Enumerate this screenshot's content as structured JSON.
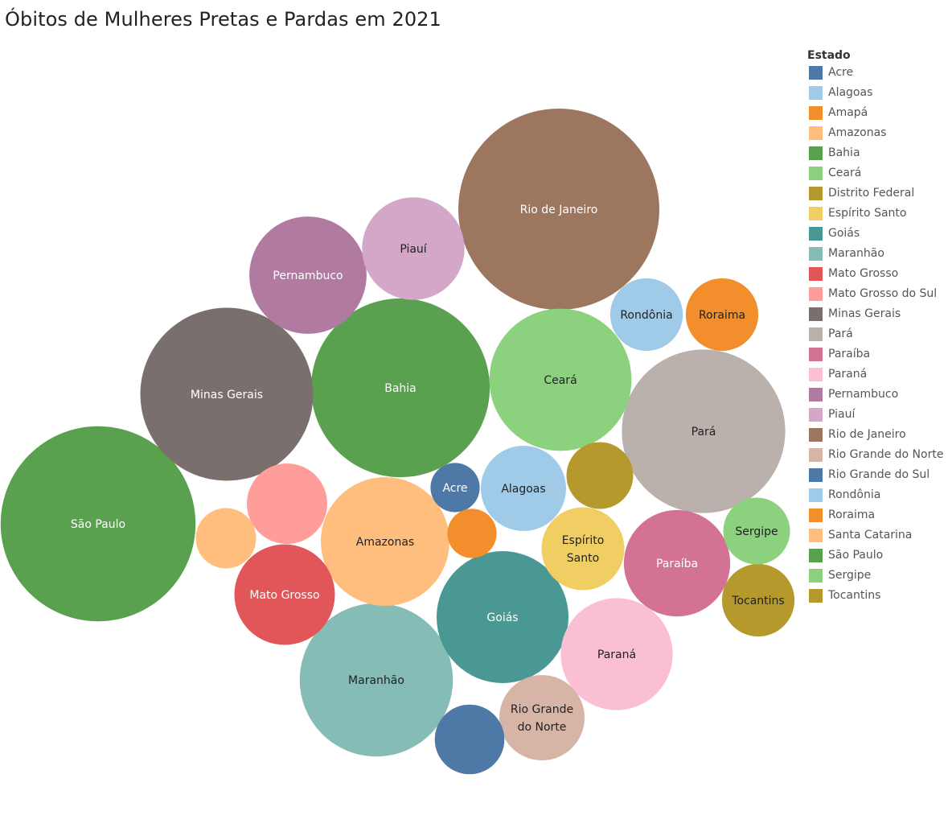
{
  "chart_data": {
    "type": "packed-bubble",
    "title": "Óbitos de Mulheres Pretas e Pardas em 2021",
    "legend": {
      "title": "Estado",
      "placement": "right",
      "items": [
        {
          "label": "Acre",
          "color": "#4e79a7"
        },
        {
          "label": "Alagoas",
          "color": "#a0cbe8"
        },
        {
          "label": "Amapá",
          "color": "#f28e2b"
        },
        {
          "label": "Amazonas",
          "color": "#ffbe7d"
        },
        {
          "label": "Bahia",
          "color": "#59a14f"
        },
        {
          "label": "Ceará",
          "color": "#8cd17d"
        },
        {
          "label": "Distrito Federal",
          "color": "#b6992d"
        },
        {
          "label": "Espírito Santo",
          "color": "#f1ce63"
        },
        {
          "label": "Goiás",
          "color": "#499894"
        },
        {
          "label": "Maranhão",
          "color": "#86bcb6"
        },
        {
          "label": "Mato Grosso",
          "color": "#e15759"
        },
        {
          "label": "Mato Grosso do Sul",
          "color": "#ff9d9a"
        },
        {
          "label": "Minas Gerais",
          "color": "#79706e"
        },
        {
          "label": "Pará",
          "color": "#bab0ac"
        },
        {
          "label": "Paraíba",
          "color": "#d37295"
        },
        {
          "label": "Paraná",
          "color": "#fabfd2"
        },
        {
          "label": "Pernambuco",
          "color": "#b07aa1"
        },
        {
          "label": "Piauí",
          "color": "#d4a6c8"
        },
        {
          "label": "Rio de Janeiro",
          "color": "#9d7660"
        },
        {
          "label": "Rio Grande do Norte",
          "color": "#d7b5a6"
        },
        {
          "label": "Rio Grande do Sul",
          "color": "#4e79a7"
        },
        {
          "label": "Rondônia",
          "color": "#a0cbe8"
        },
        {
          "label": "Roraima",
          "color": "#f28e2b"
        },
        {
          "label": "Santa Catarina",
          "color": "#ffbe7d"
        },
        {
          "label": "São Paulo",
          "color": "#59a14f"
        },
        {
          "label": "Sergipe",
          "color": "#8cd17d"
        },
        {
          "label": "Tocantins",
          "color": "#b6992d"
        }
      ]
    },
    "bubbles": [
      {
        "state": "Rio de Janeiro",
        "label": "Rio de Janeiro",
        "value": 100,
        "color": "#9d7660",
        "text_color": "#ffffff"
      },
      {
        "state": "São Paulo",
        "label": "São Paulo",
        "value": 94,
        "color": "#59a14f",
        "text_color": "#ffffff"
      },
      {
        "state": "Bahia",
        "label": "Bahia",
        "value": 79,
        "color": "#59a14f",
        "text_color": "#ffffff"
      },
      {
        "state": "Minas Gerais",
        "label": "Minas Gerais",
        "value": 74,
        "color": "#79706e",
        "text_color": "#ffffff"
      },
      {
        "state": "Pará",
        "label": "Pará",
        "value": 66,
        "color": "#bab0ac",
        "text_color": "#222222"
      },
      {
        "state": "Maranhão",
        "label": "Maranhão",
        "value": 58,
        "color": "#86bcb6",
        "text_color": "#222222"
      },
      {
        "state": "Ceará",
        "label": "Ceará",
        "value": 50,
        "color": "#8cd17d",
        "text_color": "#222222"
      },
      {
        "state": "Goiás",
        "label": "Goiás",
        "value": 43,
        "color": "#499894",
        "text_color": "#ffffff"
      },
      {
        "state": "Amazonas",
        "label": "Amazonas",
        "value": 41,
        "color": "#ffbe7d",
        "text_color": "#222222"
      },
      {
        "state": "Pernambuco",
        "label": "Pernambuco",
        "value": 34,
        "color": "#b07aa1",
        "text_color": "#ffffff"
      },
      {
        "state": "Paraíba",
        "label": "Paraíba",
        "value": 28,
        "color": "#d37295",
        "text_color": "#ffffff"
      },
      {
        "state": "Paraná",
        "label": "Paraná",
        "value": 31,
        "color": "#fabfd2",
        "text_color": "#222222"
      },
      {
        "state": "Piauí",
        "label": "Piauí",
        "value": 26,
        "color": "#d4a6c8",
        "text_color": "#222222"
      },
      {
        "state": "Mato Grosso",
        "label": "Mato Grosso",
        "value": 25,
        "color": "#e15759",
        "text_color": "#ffffff"
      },
      {
        "state": "Alagoas",
        "label": "Alagoas",
        "value": 18,
        "color": "#a0cbe8",
        "text_color": "#222222"
      },
      {
        "state": "Mato Grosso do Sul",
        "label": "",
        "value": 16,
        "color": "#ff9d9a",
        "text_color": "#222222"
      },
      {
        "state": "Espírito Santo",
        "label": "Espírito\nSanto",
        "value": 17,
        "color": "#f1ce63",
        "text_color": "#222222"
      },
      {
        "state": "Rio Grande do Norte",
        "label": "Rio Grande\ndo Norte",
        "value": 18,
        "color": "#d7b5a6",
        "text_color": "#222222"
      },
      {
        "state": "Distrito Federal",
        "label": "",
        "value": 11,
        "color": "#b6992d",
        "text_color": "#222222"
      },
      {
        "state": "Rondônia",
        "label": "Rondônia",
        "value": 13,
        "color": "#a0cbe8",
        "text_color": "#222222"
      },
      {
        "state": "Roraima",
        "label": "Roraima",
        "value": 13,
        "color": "#f28e2b",
        "text_color": "#222222"
      },
      {
        "state": "Tocantins",
        "label": "Tocantins",
        "value": 13,
        "color": "#b6992d",
        "text_color": "#222222"
      },
      {
        "state": "Sergipe",
        "label": "Sergipe",
        "value": 11,
        "color": "#8cd17d",
        "text_color": "#222222"
      },
      {
        "state": "Rio Grande do Sul",
        "label": "",
        "value": 12,
        "color": "#4e79a7",
        "text_color": "#222222"
      },
      {
        "state": "Santa Catarina",
        "label": "",
        "value": 9,
        "color": "#ffbe7d",
        "text_color": "#222222"
      },
      {
        "state": "Acre",
        "label": "Acre",
        "value": 6,
        "color": "#4e79a7",
        "text_color": "#ffffff"
      },
      {
        "state": "Amapá",
        "label": "",
        "value": 6,
        "color": "#f28e2b",
        "text_color": "#222222"
      }
    ]
  }
}
